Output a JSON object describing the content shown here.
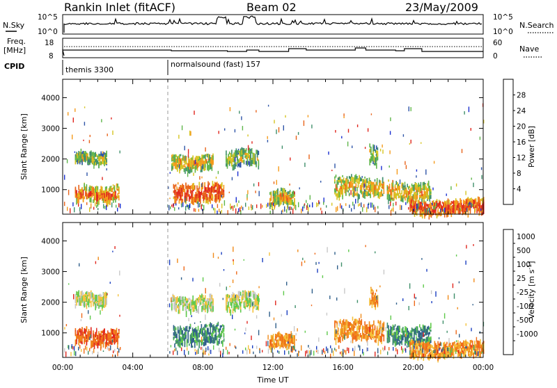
{
  "header": {
    "station": "Rankin Inlet (fitACF)",
    "beam": "Beam 02",
    "date": "23/May/2009"
  },
  "top_panels": {
    "nsky_label": "N.Sky",
    "nsky_ticks": [
      "10^5",
      "10^0"
    ],
    "nsearch_label": "N.Search",
    "nsearch_ticks": [
      "10^5",
      "10^0"
    ],
    "freq_label": "Freq.",
    "freq_unit": "[MHz]",
    "freq_ticks": [
      "18",
      "8"
    ],
    "nave_label": "Nave",
    "nave_ticks": [
      "60",
      "0"
    ],
    "cpid_label": "CPID",
    "cpid_modes": [
      {
        "name": "themis 3300",
        "start_hour": 0
      },
      {
        "name": "normalsound (fast) 157",
        "start_hour": 6
      }
    ]
  },
  "chart_data": [
    {
      "type": "heatmap",
      "title": "",
      "ylabel": "Slant Range [km]",
      "xlabel": "",
      "xlim": [
        0,
        24
      ],
      "ylim": [
        200,
        4600
      ],
      "yticks": [
        "1000",
        "2000",
        "3000",
        "4000"
      ],
      "colorbar_label": "Power [dB]",
      "colorbar_ticks": [
        "4",
        "8",
        "12",
        "16",
        "20",
        "24",
        "28"
      ],
      "colorbar_colors": [
        "#1a2fd0",
        "#2f55a8",
        "#3f8f6a",
        "#5fb54a",
        "#d6c421",
        "#f59a1a",
        "#e8631a",
        "#e0261e"
      ],
      "echo_regions": [
        {
          "t0": 0.7,
          "t1": 2.5,
          "r0": 1900,
          "r1": 2300,
          "level": 2
        },
        {
          "t0": 0.7,
          "t1": 3.2,
          "r0": 650,
          "r1": 1200,
          "level": 4
        },
        {
          "t0": 6.2,
          "t1": 8.6,
          "r0": 1700,
          "r1": 2200,
          "level": 3
        },
        {
          "t0": 6.3,
          "t1": 9.2,
          "r0": 650,
          "r1": 1300,
          "level": 5
        },
        {
          "t0": 9.3,
          "t1": 11.2,
          "r0": 1800,
          "r1": 2400,
          "level": 2
        },
        {
          "t0": 11.8,
          "t1": 13.2,
          "r0": 550,
          "r1": 1050,
          "level": 3
        },
        {
          "t0": 15.5,
          "t1": 18.3,
          "r0": 800,
          "r1": 1500,
          "level": 3
        },
        {
          "t0": 17.5,
          "t1": 18.0,
          "r0": 1900,
          "r1": 2500,
          "level": 2
        },
        {
          "t0": 18.5,
          "t1": 21.0,
          "r0": 700,
          "r1": 1300,
          "level": 3
        },
        {
          "t0": 19.8,
          "t1": 24.0,
          "r0": 250,
          "r1": 750,
          "level": 5
        }
      ]
    },
    {
      "type": "heatmap",
      "title": "",
      "ylabel": "Slant Range [km]",
      "xlabel": "Time UT",
      "xlim": [
        0,
        24
      ],
      "xticks": [
        "00:00",
        "04:00",
        "08:00",
        "12:00",
        "16:00",
        "20:00",
        "00:00"
      ],
      "ylim": [
        200,
        4600
      ],
      "yticks": [
        "1000",
        "2000",
        "3000",
        "4000"
      ],
      "colorbar_label": "Velocity [m s^-1]",
      "colorbar_ticks": [
        "1000",
        "500",
        "100",
        "25",
        "-25",
        "-100",
        "-500",
        "-1000"
      ],
      "colorbar_colors": [
        "#1b3fc0",
        "#2f5f8a",
        "#3f8f6a",
        "#5ec94a",
        "#c8c8c8",
        "#f5c23a",
        "#f08a1a",
        "#ef6a1a",
        "#e0261e"
      ],
      "echo_regions": [
        {
          "t0": 0.7,
          "t1": 2.5,
          "r0": 1900,
          "r1": 2400,
          "level": 4
        },
        {
          "t0": 0.7,
          "t1": 3.2,
          "r0": 650,
          "r1": 1200,
          "level": 7
        },
        {
          "t0": 6.2,
          "t1": 8.6,
          "r0": 1750,
          "r1": 2300,
          "level": 4
        },
        {
          "t0": 6.3,
          "t1": 9.2,
          "r0": 650,
          "r1": 1350,
          "level": 2
        },
        {
          "t0": 9.3,
          "t1": 11.2,
          "r0": 1800,
          "r1": 2400,
          "level": 4
        },
        {
          "t0": 11.8,
          "t1": 13.2,
          "r0": 550,
          "r1": 1050,
          "level": 6
        },
        {
          "t0": 15.5,
          "t1": 18.3,
          "r0": 800,
          "r1": 1500,
          "level": 6
        },
        {
          "t0": 17.5,
          "t1": 18.0,
          "r0": 1900,
          "r1": 2500,
          "level": 6
        },
        {
          "t0": 18.5,
          "t1": 21.0,
          "r0": 700,
          "r1": 1300,
          "level": 2
        },
        {
          "t0": 19.8,
          "t1": 24.0,
          "r0": 250,
          "r1": 800,
          "level": 6
        }
      ]
    }
  ]
}
